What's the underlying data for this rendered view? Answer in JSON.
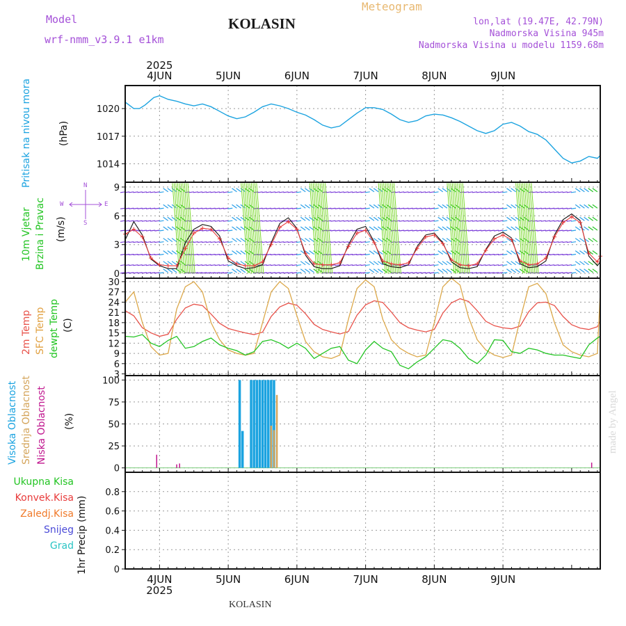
{
  "header": {
    "model_label": "Model",
    "model_name": "wrf-nmm_v3.9.1 e1km",
    "station": "KOLASIN",
    "meteogram": "Meteogram",
    "coords": "lon,lat (19.47E, 42.79N)",
    "altitude": "Nadmorska Visina 945m",
    "model_altitude": "Nadmorska Visina u modelu 1159.68m",
    "credit": "made by Angel",
    "footer_station": "KOLASIN"
  },
  "colors": {
    "pressure": "#1ba3e0",
    "temp2m": "#e8524a",
    "sfc": "#dca84a",
    "dewpt": "#22c422",
    "high_cloud": "#1ba3e0",
    "mid_cloud": "#d4a45a",
    "low_cloud": "#c0158e",
    "violet": "#a450d8"
  },
  "time_axis": {
    "year": "2025",
    "days": [
      "4JUN",
      "5JUN",
      "6JUN",
      "7JUN",
      "8JUN",
      "9JUN"
    ]
  },
  "panel_labels": {
    "pressure": [
      "Pritisak na nivou mora",
      "(hPa)"
    ],
    "wind": [
      "10m Vjetar",
      "Brzina i Pravac",
      "(m/s)"
    ],
    "wind_rose": {
      "n": "N",
      "w": "W",
      "e": "E",
      "s": "S"
    },
    "temp": [
      "2m Temp",
      "SFC Temp",
      "dewpt Temp",
      "(C)"
    ],
    "cloud": [
      "Visoka Oblacnost",
      "Srednja Oblacnost",
      "Niska Oblacnost",
      "(%)"
    ],
    "precip_unit": "1hr Precip (mm)",
    "precip_legend": [
      {
        "label": "Ukupna Kisa",
        "color": "#22c422"
      },
      {
        "label": "Konvek.Kisa",
        "color": "#e83a3a"
      },
      {
        "label": "Zaledj.Kisa",
        "color": "#f07a2a"
      },
      {
        "label": "Snijeg",
        "color": "#4a4ad8"
      },
      {
        "label": "Grad",
        "color": "#2ac4c4"
      }
    ]
  },
  "chart_data": [
    {
      "type": "line",
      "name": "pressure",
      "x_hours": [
        0,
        3,
        5,
        7,
        10,
        12,
        15,
        18,
        21,
        24,
        27,
        30,
        33,
        36,
        39,
        42,
        45,
        48,
        51,
        54,
        57,
        60,
        63,
        66,
        69,
        72,
        75,
        78,
        81,
        84,
        87,
        90,
        93,
        96,
        99,
        102,
        105,
        108,
        111,
        114,
        117,
        120,
        123,
        126,
        129,
        132,
        135,
        138,
        141,
        144,
        147,
        150,
        153,
        156,
        159,
        162,
        165,
        166
      ],
      "values": [
        1020.7,
        1020.0,
        1020.0,
        1020.4,
        1021.2,
        1021.4,
        1021.0,
        1020.8,
        1020.5,
        1020.3,
        1020.5,
        1020.2,
        1019.7,
        1019.2,
        1018.9,
        1019.1,
        1019.6,
        1020.2,
        1020.5,
        1020.3,
        1020.0,
        1019.6,
        1019.3,
        1018.8,
        1018.2,
        1017.9,
        1018.1,
        1018.8,
        1019.5,
        1020.1,
        1020.1,
        1019.9,
        1019.4,
        1018.8,
        1018.5,
        1018.7,
        1019.2,
        1019.4,
        1019.3,
        1019.0,
        1018.6,
        1018.1,
        1017.6,
        1017.3,
        1017.6,
        1018.3,
        1018.5,
        1018.1,
        1017.5,
        1017.2,
        1016.6,
        1015.6,
        1014.6,
        1014.1,
        1014.3,
        1014.8,
        1014.6,
        1014.9
      ],
      "ylabel": "(hPa)",
      "y_ticks": [
        1014,
        1017,
        1020
      ],
      "ylim": [
        1012,
        1022.5
      ]
    },
    {
      "type": "line",
      "name": "wind_speed",
      "x_hours": [
        0,
        3,
        6,
        9,
        12,
        15,
        18,
        21,
        24,
        27,
        30,
        33,
        36,
        39,
        42,
        45,
        48,
        51,
        54,
        57,
        60,
        63,
        66,
        69,
        72,
        75,
        78,
        81,
        84,
        87,
        90,
        93,
        96,
        99,
        102,
        105,
        108,
        111,
        114,
        117,
        120,
        123,
        126,
        129,
        132,
        135,
        138,
        141,
        144,
        147,
        150,
        153,
        156,
        159,
        162,
        165,
        166
      ],
      "values": [
        3.5,
        5.4,
        4.0,
        1.5,
        0.8,
        0.5,
        0.5,
        3.2,
        4.6,
        5.1,
        4.9,
        3.9,
        1.3,
        0.8,
        0.5,
        0.6,
        0.9,
        3.2,
        5.2,
        5.8,
        4.7,
        1.9,
        0.7,
        0.5,
        0.5,
        0.8,
        3.0,
        4.6,
        4.9,
        3.3,
        1.0,
        0.7,
        0.6,
        0.9,
        2.8,
        4.0,
        4.2,
        3.2,
        1.2,
        0.6,
        0.5,
        0.7,
        2.5,
        3.9,
        4.3,
        3.7,
        1.0,
        0.6,
        0.7,
        1.3,
        4.0,
        5.6,
        6.2,
        5.5,
        1.8,
        0.8,
        1.2
      ],
      "gust_values": [
        4.1,
        4.6,
        3.8,
        1.6,
        0.9,
        0.8,
        0.8,
        2.6,
        4.2,
        4.7,
        4.6,
        3.6,
        1.6,
        1.0,
        0.8,
        0.8,
        1.2,
        3.0,
        4.8,
        5.4,
        4.6,
        2.1,
        1.0,
        0.9,
        0.9,
        1.1,
        2.8,
        4.2,
        4.5,
        3.2,
        1.3,
        1.0,
        0.9,
        1.1,
        2.6,
        3.8,
        4.0,
        3.1,
        1.4,
        0.9,
        0.8,
        1.0,
        2.4,
        3.6,
        4.0,
        3.5,
        1.3,
        0.9,
        1.0,
        1.6,
        3.8,
        5.3,
        5.9,
        5.3,
        2.1,
        1.2,
        1.8
      ],
      "ylabel": "(m/s)",
      "y_ticks": [
        0,
        3,
        6,
        9
      ],
      "ylim": [
        -0.5,
        9.5
      ]
    },
    {
      "type": "line",
      "name": "temperature",
      "x_hours": [
        0,
        3,
        6,
        9,
        12,
        15,
        18,
        21,
        24,
        27,
        30,
        33,
        36,
        39,
        42,
        45,
        48,
        51,
        54,
        57,
        60,
        63,
        66,
        69,
        72,
        75,
        78,
        81,
        84,
        87,
        90,
        93,
        96,
        99,
        102,
        105,
        108,
        111,
        114,
        117,
        120,
        123,
        126,
        129,
        132,
        135,
        138,
        141,
        144,
        147,
        150,
        153,
        156,
        159,
        162,
        165,
        166
      ],
      "series": [
        {
          "name": "2m Temp",
          "values": [
            21.5,
            20.0,
            16.5,
            15.0,
            14.0,
            14.6,
            19.0,
            22.3,
            23.4,
            23.0,
            20.5,
            17.8,
            16.3,
            15.6,
            15.0,
            14.5,
            15.2,
            19.8,
            22.6,
            23.7,
            23.1,
            20.6,
            17.5,
            16.0,
            15.3,
            14.7,
            15.4,
            20.2,
            23.2,
            24.4,
            23.9,
            21.1,
            18.0,
            16.5,
            15.8,
            15.3,
            16.0,
            20.8,
            23.8,
            25.0,
            24.2,
            21.5,
            18.4,
            17.1,
            16.5,
            16.2,
            17.0,
            21.2,
            23.8,
            24.0,
            23.0,
            19.8,
            17.4,
            16.4,
            16.0,
            16.8,
            18.5
          ]
        },
        {
          "name": "SFC Temp",
          "values": [
            24.0,
            27.0,
            18.0,
            11.0,
            8.5,
            9.0,
            22.0,
            28.5,
            30.0,
            27.0,
            18.0,
            13.0,
            10.0,
            9.0,
            8.5,
            9.0,
            18.0,
            27.0,
            30.0,
            28.0,
            20.0,
            12.5,
            9.5,
            8.0,
            7.5,
            8.5,
            19.0,
            28.0,
            30.5,
            28.5,
            19.0,
            13.0,
            10.5,
            9.0,
            8.0,
            8.5,
            18.0,
            28.5,
            31.0,
            29.0,
            19.5,
            13.0,
            10.0,
            8.5,
            7.8,
            8.5,
            19.0,
            28.5,
            29.5,
            26.5,
            18.0,
            11.5,
            9.5,
            8.5,
            8.0,
            9.0,
            27.0
          ]
        },
        {
          "name": "dewpt Temp",
          "values": [
            14.0,
            13.8,
            14.5,
            12.0,
            11.0,
            12.8,
            14.0,
            10.5,
            11.0,
            12.5,
            13.5,
            11.5,
            10.5,
            9.8,
            8.5,
            9.5,
            12.5,
            13.0,
            12.0,
            10.5,
            12.0,
            10.5,
            7.5,
            9.0,
            10.5,
            11.0,
            7.0,
            6.0,
            10.0,
            12.5,
            10.5,
            9.5,
            5.5,
            4.5,
            6.5,
            8.0,
            10.5,
            13.0,
            12.5,
            10.5,
            7.5,
            6.0,
            8.5,
            13.0,
            12.8,
            9.5,
            9.0,
            10.5,
            10.0,
            9.0,
            8.5,
            8.5,
            8.0,
            7.5,
            11.5,
            13.5,
            14.0
          ]
        }
      ],
      "ylabel": "(C)",
      "y_ticks": [
        3,
        6,
        9,
        12,
        15,
        18,
        21,
        24,
        27,
        30
      ],
      "ylim": [
        2.5,
        31
      ]
    },
    {
      "type": "bar",
      "name": "cloud",
      "series": [
        {
          "name": "Visoka Oblacnost",
          "x_hours": [
            40,
            41,
            44,
            45,
            46,
            47,
            48,
            49,
            50,
            51,
            52
          ],
          "values": [
            100,
            42,
            100,
            100,
            100,
            100,
            100,
            100,
            100,
            100,
            100
          ]
        },
        {
          "name": "Srednja Oblacnost",
          "x_hours": [
            51,
            52,
            53
          ],
          "values": [
            48,
            43,
            83
          ]
        },
        {
          "name": "Niska Oblacnost",
          "x_hours": [
            11,
            18,
            19,
            163
          ],
          "values": [
            15,
            4,
            5,
            6
          ]
        }
      ],
      "ylabel": "(%)",
      "y_ticks": [
        0,
        25,
        50,
        75,
        100
      ],
      "ylim": [
        -5,
        105
      ]
    },
    {
      "type": "bar",
      "name": "precip",
      "series": [],
      "ylabel": "1hr Precip (mm)",
      "y_ticks": [
        0,
        0.2,
        0.4,
        0.6,
        0.8
      ],
      "ylim": [
        0,
        1.0
      ]
    }
  ]
}
